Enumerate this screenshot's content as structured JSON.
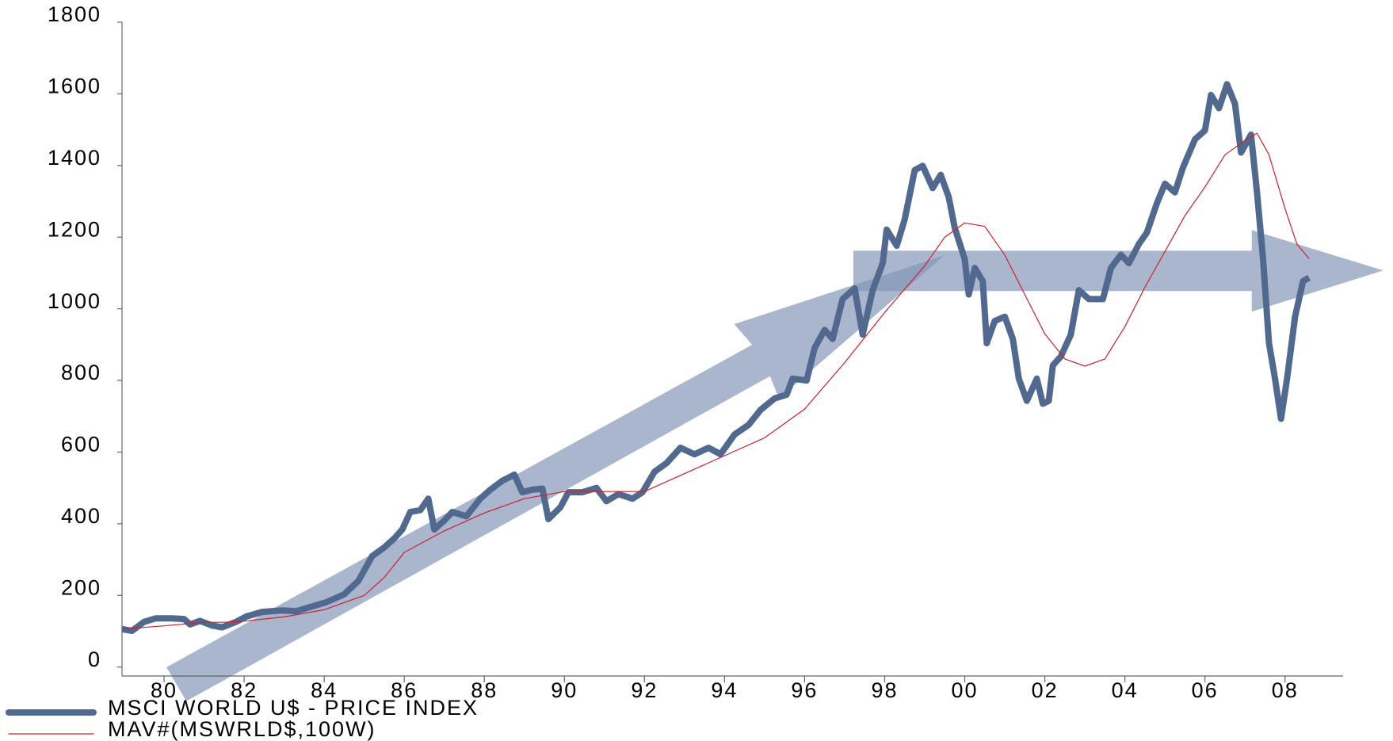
{
  "chart_data": {
    "type": "line",
    "xlim": [
      1978.95,
      2009.45
    ],
    "xticks": [
      {
        "value": 1980,
        "label": "80"
      },
      {
        "value": 1982,
        "label": "82"
      },
      {
        "value": 1984,
        "label": "84"
      },
      {
        "value": 1986,
        "label": "86"
      },
      {
        "value": 1988,
        "label": "88"
      },
      {
        "value": 1990,
        "label": "90"
      },
      {
        "value": 1992,
        "label": "92"
      },
      {
        "value": 1994,
        "label": "94"
      },
      {
        "value": 1996,
        "label": "96"
      },
      {
        "value": 1998,
        "label": "98"
      },
      {
        "value": 2000,
        "label": "00"
      },
      {
        "value": 2002,
        "label": "02"
      },
      {
        "value": 2004,
        "label": "04"
      },
      {
        "value": 2006,
        "label": "06"
      },
      {
        "value": 2008,
        "label": "08"
      }
    ],
    "ylim": [
      -25,
      1800
    ],
    "yticks": [
      0,
      200,
      400,
      600,
      800,
      1000,
      1200,
      1400,
      1600,
      1800
    ],
    "grid": false,
    "legend": "bottom-left",
    "series": [
      {
        "name": "MSCI WORLD U$ - PRICE INDEX",
        "color": "#52698f",
        "x": [
          1978.95,
          1979.2,
          1979.5,
          1979.8,
          1980.2,
          1980.5,
          1980.65,
          1980.9,
          1981.2,
          1981.45,
          1981.8,
          1982.05,
          1982.45,
          1982.95,
          1983.3,
          1983.6,
          1984.05,
          1984.5,
          1984.85,
          1985.2,
          1985.5,
          1985.75,
          1985.95,
          1986.15,
          1986.4,
          1986.6,
          1986.75,
          1987,
          1987.2,
          1987.55,
          1987.9,
          1988.15,
          1988.45,
          1988.75,
          1988.95,
          1989.2,
          1989.45,
          1989.6,
          1989.9,
          1990.1,
          1990.45,
          1990.8,
          1991.05,
          1991.35,
          1991.7,
          1991.95,
          1992.25,
          1992.55,
          1992.9,
          1993.25,
          1993.6,
          1993.9,
          1994.25,
          1994.6,
          1994.9,
          1995.25,
          1995.55,
          1995.7,
          1996.05,
          1996.25,
          1996.5,
          1996.7,
          1996.95,
          1997.25,
          1997.45,
          1997.7,
          1997.95,
          1998.05,
          1998.3,
          1998.5,
          1998.75,
          1998.95,
          1999.2,
          1999.4,
          1999.6,
          1999.75,
          2000,
          2000.1,
          2000.25,
          2000.45,
          2000.55,
          2000.75,
          2001,
          2001.2,
          2001.35,
          2001.55,
          2001.8,
          2001.95,
          2002.1,
          2002.2,
          2002.4,
          2002.65,
          2002.85,
          2003.1,
          2003.45,
          2003.65,
          2003.9,
          2004.1,
          2004.35,
          2004.55,
          2004.8,
          2005,
          2005.25,
          2005.45,
          2005.75,
          2006,
          2006.15,
          2006.35,
          2006.55,
          2006.75,
          2006.9,
          2007.15,
          2007.3,
          2007.45,
          2007.6,
          2007.75,
          2007.9,
          2008.05,
          2008.25,
          2008.45,
          2008.6
        ],
        "values": [
          106,
          101,
          126,
          136,
          136,
          134,
          119,
          129,
          116,
          111,
          126,
          141,
          154,
          158,
          156,
          166,
          181,
          203,
          240,
          310,
          334,
          359,
          384,
          433,
          438,
          470,
          384,
          409,
          433,
          421,
          470,
          495,
          520,
          537,
          488,
          495,
          498,
          413,
          446,
          488,
          488,
          500,
          463,
          483,
          470,
          488,
          545,
          569,
          612,
          594,
          612,
          594,
          649,
          676,
          718,
          750,
          760,
          805,
          800,
          891,
          941,
          916,
          1027,
          1057,
          928,
          1052,
          1127,
          1221,
          1176,
          1250,
          1387,
          1399,
          1337,
          1374,
          1312,
          1226,
          1139,
          1040,
          1114,
          1077,
          904,
          966,
          978,
          916,
          805,
          743,
          805,
          735,
          743,
          842,
          867,
          928,
          1052,
          1027,
          1027,
          1114,
          1151,
          1127,
          1181,
          1213,
          1295,
          1349,
          1325,
          1394,
          1473,
          1498,
          1597,
          1560,
          1627,
          1572,
          1436,
          1486,
          1325,
          1139,
          904,
          805,
          693,
          805,
          978,
          1077,
          1087
        ]
      },
      {
        "name": "MAV#(MSWRLD$,100W)",
        "color": "#d0202a",
        "x": [
          1978.95,
          1980,
          1981,
          1981.5,
          1982,
          1983,
          1984,
          1985,
          1985.5,
          1986,
          1987,
          1988,
          1989,
          1990,
          1991,
          1992,
          1993,
          1994,
          1995,
          1996,
          1997,
          1998,
          1999,
          1999.5,
          2000,
          2000.5,
          2001,
          2001.5,
          2002,
          2002.5,
          2003,
          2003.5,
          2004,
          2004.5,
          2005,
          2005.5,
          2006,
          2006.5,
          2007,
          2007.3,
          2007.6,
          2008,
          2008.3,
          2008.6
        ],
        "values": [
          106,
          115,
          125,
          125,
          128,
          140,
          160,
          200,
          250,
          320,
          380,
          430,
          470,
          490,
          490,
          490,
          540,
          590,
          640,
          720,
          850,
          990,
          1120,
          1200,
          1240,
          1230,
          1150,
          1040,
          930,
          860,
          840,
          860,
          950,
          1060,
          1160,
          1260,
          1340,
          1430,
          1470,
          1490,
          1430,
          1280,
          1180,
          1140
        ]
      }
    ]
  }
}
